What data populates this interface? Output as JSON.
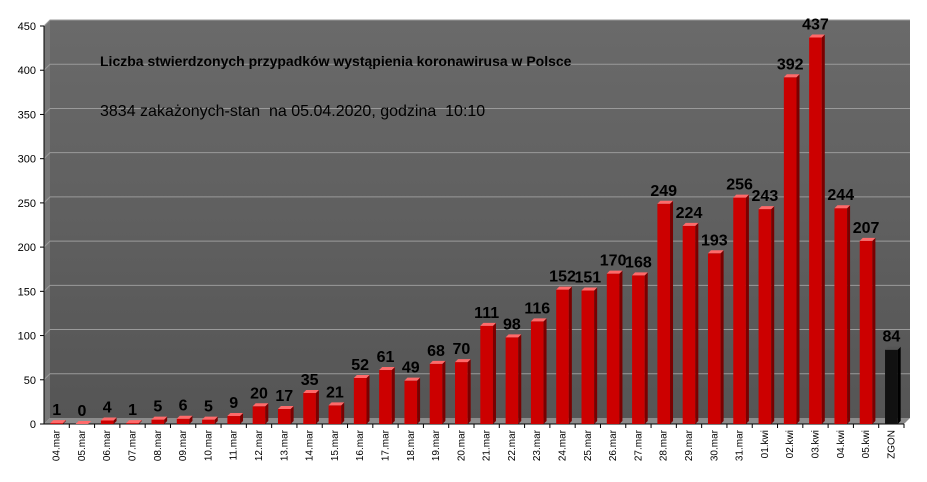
{
  "chart_data": {
    "type": "bar",
    "title": "Liczba stwierdzonych przypadków wystąpienia koronawirusa w Polsce",
    "subtitle": "3834 zakażonych-stan  na 05.04.2020, godzina  10:10",
    "xlabel": "",
    "ylabel": "",
    "ylim": [
      0,
      450
    ],
    "yticks": [
      0,
      50,
      100,
      150,
      200,
      250,
      300,
      350,
      400,
      450
    ],
    "grid": true,
    "categories": [
      "04.mar",
      "05.mar",
      "06.mar",
      "07.mar",
      "08.mar",
      "09.mar",
      "10.mar",
      "11.mar",
      "12.mar",
      "13.mar",
      "14.mar",
      "15.mar",
      "16.mar",
      "17.mar",
      "18.mar",
      "19.mar",
      "20.mar",
      "21.mar",
      "22.mar",
      "23.mar",
      "24.mar",
      "25.mar",
      "26.mar",
      "27.mar",
      "28.mar",
      "29.mar",
      "30.mar",
      "31.mar",
      "01.kwi",
      "02.kwi",
      "03.kwi",
      "04.kwi",
      "05.kwi",
      "ZGON"
    ],
    "values": [
      1,
      0,
      4,
      1,
      5,
      6,
      5,
      9,
      20,
      17,
      35,
      21,
      52,
      61,
      49,
      68,
      70,
      111,
      98,
      116,
      152,
      151,
      170,
      168,
      249,
      224,
      193,
      256,
      243,
      392,
      437,
      244,
      207,
      84
    ],
    "colors": {
      "plot_background": "#5f5f5f",
      "bar": "#cc0000",
      "bar_last": "#111111",
      "grid": "#9a9a9a"
    }
  }
}
